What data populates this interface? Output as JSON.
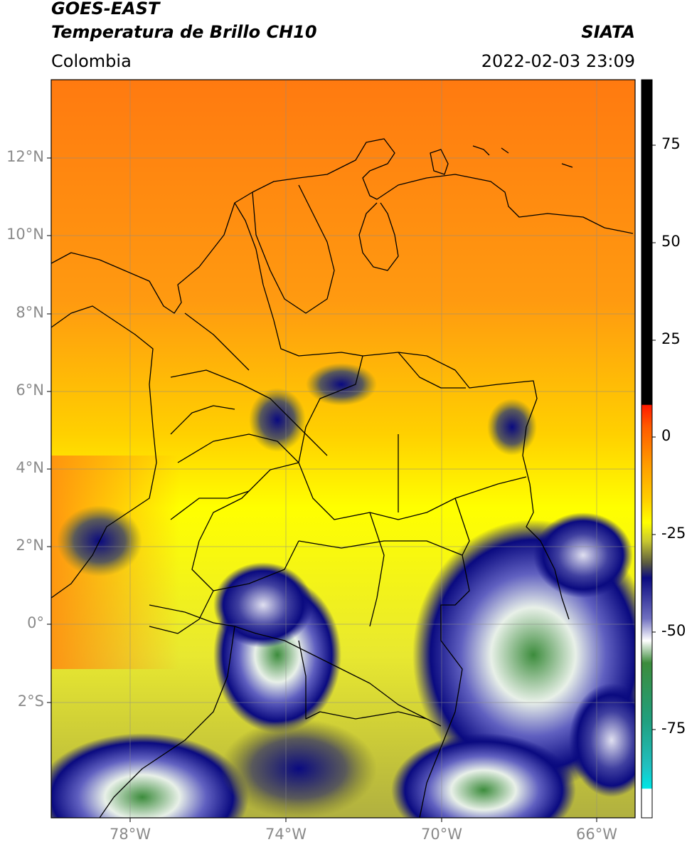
{
  "header": {
    "satellite": "GOES-EAST",
    "product": "Temperatura de Brillo CH10",
    "agency": "SIATA",
    "region": "Colombia",
    "datetime": "2022-02-03 23:09"
  },
  "map": {
    "lat_labels": [
      "12°N",
      "10°N",
      "8°N",
      "6°N",
      "4°N",
      "2°N",
      "0°",
      "2°S"
    ],
    "lon_labels": [
      "78°W",
      "74°W",
      "70°W",
      "66°W"
    ],
    "colorbar": {
      "labels": [
        "75",
        "50",
        "25",
        "0",
        "-25",
        "-50",
        "-75"
      ],
      "colors": {
        "black": "#000000",
        "red": "#ff1a00",
        "orange": "#ff8c00",
        "yellow": "#ffff00",
        "olive": "#7a7a2a",
        "navy": "#0a0a80",
        "white": "#ffffff",
        "green": "#3c8c3c",
        "teal": "#20c0a0",
        "cyan": "#00e5e5"
      }
    }
  }
}
